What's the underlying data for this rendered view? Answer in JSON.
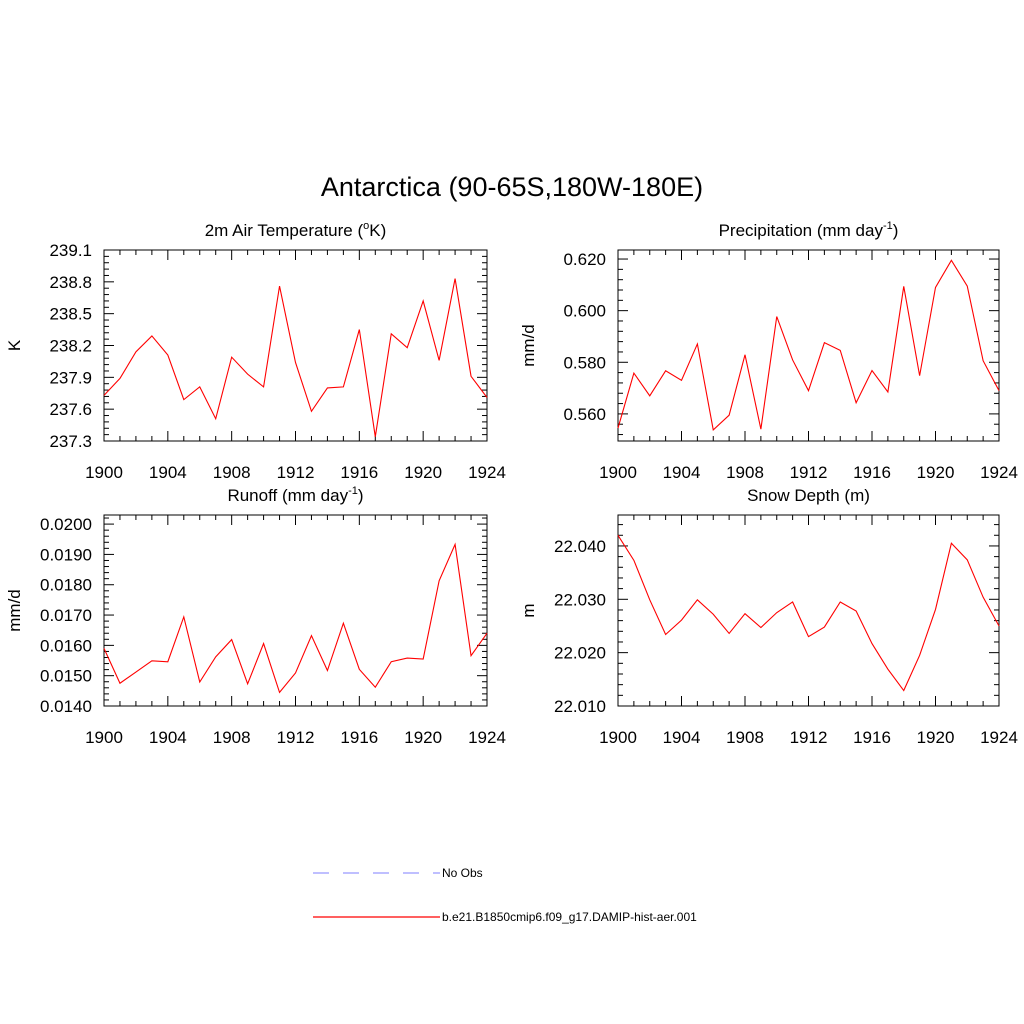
{
  "figure_title": "Antarctica (90-65S,180W-180E)",
  "chart_data": [
    {
      "type": "line",
      "title": "2m Air Temperature (oK)",
      "title_parts": {
        "main": "2m Air Temperature (",
        "sup": "o",
        "rest": "K)"
      },
      "xlabel": "",
      "ylabel": "K",
      "xlim": [
        1900,
        1924
      ],
      "ylim": [
        237.3,
        239.1
      ],
      "yticks": [
        "237.3",
        "237.6",
        "237.9",
        "238.2",
        "238.5",
        "238.8",
        "239.1"
      ],
      "ytick_values": [
        237.3,
        237.6,
        237.9,
        238.2,
        238.5,
        238.8,
        239.1
      ],
      "xticks": [
        "1900",
        "1904",
        "1908",
        "1912",
        "1916",
        "1920",
        "1924"
      ],
      "xtick_values": [
        1900,
        1904,
        1908,
        1912,
        1916,
        1920,
        1924
      ],
      "x": [
        1900,
        1901,
        1902,
        1903,
        1904,
        1905,
        1906,
        1907,
        1908,
        1909,
        1910,
        1911,
        1912,
        1913,
        1914,
        1915,
        1916,
        1917,
        1918,
        1919,
        1920,
        1921,
        1922,
        1923,
        1924
      ],
      "series": [
        {
          "name": "b.e21.B1850cmip6.f09_g17.DAMIP-hist-aer.001",
          "color": "#ff0000",
          "values": [
            237.73,
            237.89,
            238.14,
            238.29,
            238.11,
            237.69,
            237.81,
            237.51,
            238.09,
            237.93,
            237.81,
            238.76,
            238.04,
            237.58,
            237.8,
            237.81,
            238.35,
            237.34,
            238.31,
            238.18,
            238.62,
            238.06,
            238.83,
            237.91,
            237.71
          ]
        }
      ]
    },
    {
      "type": "line",
      "title": "Precipitation (mm day-1)",
      "title_parts": {
        "main": "Precipitation (mm day",
        "sup": "-1",
        "rest": ")"
      },
      "xlabel": "",
      "ylabel": "mm/d",
      "xlim": [
        1900,
        1924
      ],
      "ylim": [
        0.5495,
        0.6235
      ],
      "yticks": [
        "0.560",
        "0.580",
        "0.600",
        "0.620"
      ],
      "ytick_values": [
        0.56,
        0.58,
        0.6,
        0.62
      ],
      "xticks": [
        "1900",
        "1904",
        "1908",
        "1912",
        "1916",
        "1920",
        "1924"
      ],
      "xtick_values": [
        1900,
        1904,
        1908,
        1912,
        1916,
        1920,
        1924
      ],
      "x": [
        1900,
        1901,
        1902,
        1903,
        1904,
        1905,
        1906,
        1907,
        1908,
        1909,
        1910,
        1911,
        1912,
        1913,
        1914,
        1915,
        1916,
        1917,
        1918,
        1919,
        1920,
        1921,
        1922,
        1923,
        1924
      ],
      "series": [
        {
          "name": "b.e21.B1850cmip6.f09_g17.DAMIP-hist-aer.001",
          "color": "#ff0000",
          "values": [
            0.5545,
            0.5758,
            0.567,
            0.5767,
            0.573,
            0.5871,
            0.5538,
            0.5595,
            0.5829,
            0.5541,
            0.5977,
            0.5809,
            0.569,
            0.5876,
            0.5846,
            0.5643,
            0.5768,
            0.5685,
            0.6094,
            0.5748,
            0.609,
            0.6195,
            0.6095,
            0.5806,
            0.569
          ]
        }
      ]
    },
    {
      "type": "line",
      "title": "Runoff (mm day-1)",
      "title_parts": {
        "main": "Runoff (mm day",
        "sup": "-1",
        "rest": ")"
      },
      "xlabel": "",
      "ylabel": "mm/d",
      "xlim": [
        1900,
        1924
      ],
      "ylim": [
        0.014,
        0.0203
      ],
      "yticks": [
        "0.0140",
        "0.0150",
        "0.0160",
        "0.0170",
        "0.0180",
        "0.0190",
        "0.0200"
      ],
      "ytick_values": [
        0.014,
        0.015,
        0.016,
        0.017,
        0.018,
        0.019,
        0.02
      ],
      "xticks": [
        "1900",
        "1904",
        "1908",
        "1912",
        "1916",
        "1920",
        "1924"
      ],
      "xtick_values": [
        1900,
        1904,
        1908,
        1912,
        1916,
        1920,
        1924
      ],
      "x": [
        1900,
        1901,
        1902,
        1903,
        1904,
        1905,
        1906,
        1907,
        1908,
        1909,
        1910,
        1911,
        1912,
        1913,
        1914,
        1915,
        1916,
        1917,
        1918,
        1919,
        1920,
        1921,
        1922,
        1923,
        1924
      ],
      "series": [
        {
          "name": "b.e21.B1850cmip6.f09_g17.DAMIP-hist-aer.001",
          "color": "#ff0000",
          "values": [
            0.0159,
            0.01475,
            0.01512,
            0.01549,
            0.01546,
            0.01694,
            0.01479,
            0.01562,
            0.01619,
            0.01473,
            0.01606,
            0.01445,
            0.01509,
            0.01632,
            0.01517,
            0.01673,
            0.01521,
            0.01462,
            0.01546,
            0.01558,
            0.01555,
            0.01813,
            0.01933,
            0.01566,
            0.0164
          ]
        }
      ]
    },
    {
      "type": "line",
      "title": "Snow Depth (m)",
      "title_parts": {
        "main": "Snow Depth (m)",
        "sup": "",
        "rest": ""
      },
      "xlabel": "",
      "ylabel": "m",
      "xlim": [
        1900,
        1924
      ],
      "ylim": [
        22.01,
        22.0458
      ],
      "yticks": [
        "22.010",
        "22.020",
        "22.030",
        "22.040"
      ],
      "ytick_values": [
        22.01,
        22.02,
        22.03,
        22.04
      ],
      "xticks": [
        "1900",
        "1904",
        "1908",
        "1912",
        "1916",
        "1920",
        "1924"
      ],
      "xtick_values": [
        1900,
        1904,
        1908,
        1912,
        1916,
        1920,
        1924
      ],
      "x": [
        1900,
        1901,
        1902,
        1903,
        1904,
        1905,
        1906,
        1907,
        1908,
        1909,
        1910,
        1911,
        1912,
        1913,
        1914,
        1915,
        1916,
        1917,
        1918,
        1919,
        1920,
        1921,
        1922,
        1923,
        1924
      ],
      "series": [
        {
          "name": "b.e21.B1850cmip6.f09_g17.DAMIP-hist-aer.001",
          "color": "#ff0000",
          "values": [
            22.042,
            22.0373,
            22.0299,
            22.0234,
            22.0261,
            22.0299,
            22.0272,
            22.0236,
            22.0273,
            22.0247,
            22.0275,
            22.0295,
            22.023,
            22.0248,
            22.0295,
            22.0278,
            22.0217,
            22.0169,
            22.0129,
            22.0195,
            22.0281,
            22.0405,
            22.0374,
            22.0304,
            22.025
          ]
        }
      ]
    }
  ],
  "legend": {
    "placement": "bottom-center",
    "items": [
      {
        "label": "No Obs",
        "color": "#9999ff",
        "style": "dashed"
      },
      {
        "label": "b.e21.B1850cmip6.f09_g17.DAMIP-hist-aer.001",
        "color": "#ff0000",
        "style": "solid"
      }
    ]
  }
}
